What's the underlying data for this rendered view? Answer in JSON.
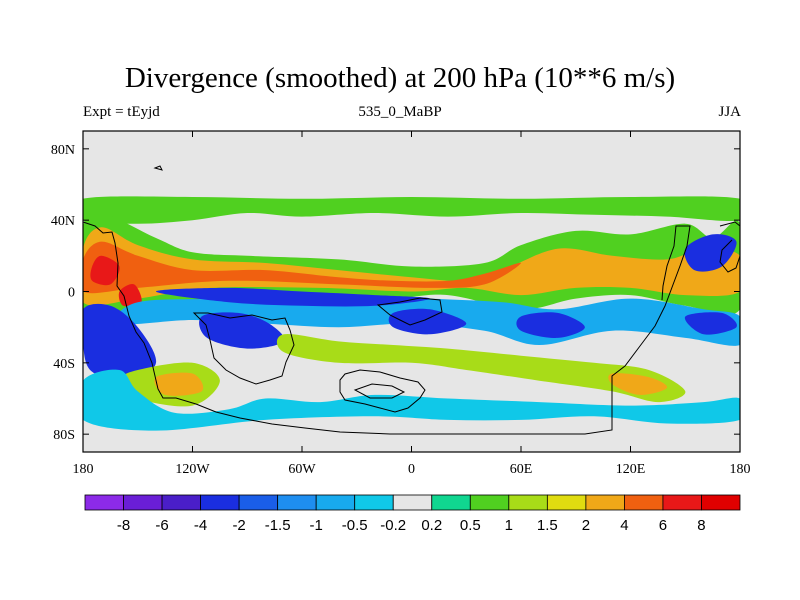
{
  "chart_data": {
    "type": "heatmap",
    "title": "Divergence (smoothed) at 200 hPa (10**6 m/s)",
    "subtitle_left": "Expt = tEyjd",
    "subtitle_center": "535_0_MaBP",
    "subtitle_right": "JJA",
    "xlim": [
      -180,
      180
    ],
    "ylim": [
      -90,
      90
    ],
    "x_ticks": [
      {
        "value": -180,
        "label": "180"
      },
      {
        "value": -120,
        "label": "120W"
      },
      {
        "value": -60,
        "label": "60W"
      },
      {
        "value": 0,
        "label": "0"
      },
      {
        "value": 60,
        "label": "60E"
      },
      {
        "value": 120,
        "label": "120E"
      },
      {
        "value": 180,
        "label": "180"
      }
    ],
    "y_ticks": [
      {
        "value": 80,
        "label": "80N"
      },
      {
        "value": 40,
        "label": "40N"
      },
      {
        "value": 0,
        "label": "0"
      },
      {
        "value": -40,
        "label": "40S"
      },
      {
        "value": -80,
        "label": "80S"
      }
    ],
    "colorbar": {
      "labels": [
        "-8",
        "-6",
        "-4",
        "-2",
        "-1.5",
        "-1",
        "-0.5",
        "-0.2",
        "0.2",
        "0.5",
        "1",
        "1.5",
        "2",
        "4",
        "6",
        "8"
      ],
      "colors": [
        "#8c2ae8",
        "#6a1ed6",
        "#4a1ec8",
        "#1a2ee0",
        "#1a5ee8",
        "#1e8ef0",
        "#18aaee",
        "#10c8e8",
        "#e6e6e6",
        "#10d690",
        "#50d020",
        "#a8dc18",
        "#e0dc10",
        "#f0a818",
        "#f06010",
        "#e81818",
        "#e00000"
      ]
    },
    "bands": [
      {
        "level": 0.5,
        "pts": [
          [
            -180,
            52
          ],
          [
            -180,
            40
          ],
          [
            -150,
            38
          ],
          [
            -120,
            40
          ],
          [
            -90,
            44
          ],
          [
            -60,
            42
          ],
          [
            -20,
            44
          ],
          [
            20,
            42
          ],
          [
            60,
            44
          ],
          [
            100,
            43
          ],
          [
            140,
            42
          ],
          [
            180,
            40
          ],
          [
            180,
            52
          ],
          [
            120,
            53
          ],
          [
            60,
            52
          ],
          [
            0,
            53
          ],
          [
            -60,
            52
          ],
          [
            -120,
            53
          ]
        ]
      },
      {
        "level": 0.5,
        "pts": [
          [
            -180,
            36
          ],
          [
            -170,
            44
          ],
          [
            -140,
            30
          ],
          [
            -120,
            22
          ],
          [
            -90,
            20
          ],
          [
            -40,
            18
          ],
          [
            0,
            14
          ],
          [
            40,
            16
          ],
          [
            60,
            26
          ],
          [
            90,
            34
          ],
          [
            120,
            32
          ],
          [
            150,
            38
          ],
          [
            165,
            30
          ],
          [
            180,
            38
          ],
          [
            180,
            -10
          ],
          [
            150,
            -8
          ],
          [
            120,
            -2
          ],
          [
            90,
            -4
          ],
          [
            60,
            -10
          ],
          [
            20,
            -2
          ],
          [
            -10,
            -4
          ],
          [
            -60,
            -6
          ],
          [
            -110,
            -4
          ],
          [
            -150,
            -10
          ],
          [
            -180,
            -14
          ]
        ]
      },
      {
        "level": 2,
        "pts": [
          [
            -180,
            24
          ],
          [
            -170,
            36
          ],
          [
            -150,
            26
          ],
          [
            -120,
            18
          ],
          [
            -80,
            16
          ],
          [
            -40,
            12
          ],
          [
            0,
            8
          ],
          [
            30,
            6
          ],
          [
            50,
            12
          ],
          [
            80,
            24
          ],
          [
            110,
            20
          ],
          [
            140,
            18
          ],
          [
            160,
            24
          ],
          [
            180,
            20
          ],
          [
            180,
            0
          ],
          [
            150,
            -2
          ],
          [
            120,
            2
          ],
          [
            90,
            2
          ],
          [
            60,
            -2
          ],
          [
            30,
            2
          ],
          [
            0,
            0
          ],
          [
            -50,
            2
          ],
          [
            -110,
            2
          ],
          [
            -150,
            -4
          ],
          [
            -180,
            -6
          ]
        ]
      },
      {
        "level": 4,
        "pts": [
          [
            -180,
            18
          ],
          [
            -170,
            28
          ],
          [
            -150,
            20
          ],
          [
            -120,
            12
          ],
          [
            -80,
            12
          ],
          [
            -40,
            8
          ],
          [
            -10,
            6
          ],
          [
            20,
            6
          ],
          [
            40,
            10
          ],
          [
            60,
            16
          ],
          [
            40,
            4
          ],
          [
            10,
            2
          ],
          [
            -40,
            4
          ],
          [
            -100,
            6
          ],
          [
            -150,
            2
          ],
          [
            -180,
            0
          ]
        ]
      },
      {
        "level": 6,
        "pts": [
          [
            -175,
            14
          ],
          [
            -170,
            20
          ],
          [
            -160,
            14
          ],
          [
            -165,
            4
          ],
          [
            -175,
            6
          ]
        ]
      },
      {
        "level": 6,
        "pts": [
          [
            -160,
            0
          ],
          [
            -152,
            4
          ],
          [
            -148,
            -6
          ],
          [
            -158,
            -8
          ]
        ]
      },
      {
        "level": -1,
        "pts": [
          [
            -150,
            -6
          ],
          [
            -100,
            -4
          ],
          [
            -40,
            -2
          ],
          [
            10,
            -4
          ],
          [
            50,
            -6
          ],
          [
            80,
            -10
          ],
          [
            120,
            -4
          ],
          [
            160,
            -10
          ],
          [
            180,
            -14
          ],
          [
            180,
            -30
          ],
          [
            150,
            -26
          ],
          [
            110,
            -22
          ],
          [
            70,
            -30
          ],
          [
            40,
            -22
          ],
          [
            0,
            -18
          ],
          [
            -40,
            -20
          ],
          [
            -80,
            -18
          ],
          [
            -120,
            -16
          ],
          [
            -160,
            -18
          ]
        ]
      },
      {
        "level": -4,
        "pts": [
          [
            -140,
            0
          ],
          [
            -100,
            2
          ],
          [
            -60,
            0
          ],
          [
            -20,
            -2
          ],
          [
            10,
            -4
          ],
          [
            -20,
            -8
          ],
          [
            -60,
            -8
          ],
          [
            -100,
            -6
          ]
        ]
      },
      {
        "level": -4,
        "pts": [
          [
            -180,
            -10
          ],
          [
            -165,
            -8
          ],
          [
            -150,
            -20
          ],
          [
            -140,
            -40
          ],
          [
            -155,
            -50
          ],
          [
            -175,
            -45
          ],
          [
            -180,
            -30
          ]
        ]
      },
      {
        "level": -4,
        "pts": [
          [
            -115,
            -14
          ],
          [
            -95,
            -12
          ],
          [
            -78,
            -18
          ],
          [
            -70,
            -28
          ],
          [
            -90,
            -32
          ],
          [
            -112,
            -26
          ]
        ]
      },
      {
        "level": -4,
        "pts": [
          [
            -10,
            -12
          ],
          [
            10,
            -10
          ],
          [
            30,
            -18
          ],
          [
            10,
            -24
          ],
          [
            -10,
            -20
          ]
        ]
      },
      {
        "level": -4,
        "pts": [
          [
            60,
            -14
          ],
          [
            80,
            -12
          ],
          [
            95,
            -20
          ],
          [
            80,
            -26
          ],
          [
            60,
            -22
          ]
        ]
      },
      {
        "level": -4,
        "pts": [
          [
            150,
            -14
          ],
          [
            170,
            -12
          ],
          [
            178,
            -20
          ],
          [
            160,
            -24
          ]
        ]
      },
      {
        "level": -4,
        "pts": [
          [
            150,
            24
          ],
          [
            165,
            32
          ],
          [
            178,
            28
          ],
          [
            170,
            14
          ],
          [
            155,
            12
          ]
        ]
      },
      {
        "level": 1,
        "pts": [
          [
            -150,
            -44
          ],
          [
            -120,
            -40
          ],
          [
            -105,
            -50
          ],
          [
            -120,
            -64
          ],
          [
            -150,
            -60
          ],
          [
            -160,
            -50
          ]
        ]
      },
      {
        "level": 2,
        "pts": [
          [
            -140,
            -48
          ],
          [
            -120,
            -46
          ],
          [
            -115,
            -56
          ],
          [
            -135,
            -58
          ]
        ]
      },
      {
        "level": 1,
        "pts": [
          [
            -70,
            -24
          ],
          [
            -40,
            -28
          ],
          [
            -10,
            -30
          ],
          [
            20,
            -32
          ],
          [
            60,
            -36
          ],
          [
            100,
            -40
          ],
          [
            130,
            -44
          ],
          [
            150,
            -56
          ],
          [
            135,
            -62
          ],
          [
            110,
            -56
          ],
          [
            70,
            -50
          ],
          [
            30,
            -44
          ],
          [
            0,
            -40
          ],
          [
            -40,
            -40
          ],
          [
            -70,
            -34
          ]
        ]
      },
      {
        "level": 2,
        "pts": [
          [
            110,
            -46
          ],
          [
            130,
            -48
          ],
          [
            140,
            -54
          ],
          [
            125,
            -58
          ],
          [
            110,
            -52
          ]
        ]
      },
      {
        "level": -0.5,
        "pts": [
          [
            -180,
            -50
          ],
          [
            -160,
            -44
          ],
          [
            -150,
            -56
          ],
          [
            -130,
            -68
          ],
          [
            -100,
            -66
          ],
          [
            -80,
            -60
          ],
          [
            -50,
            -62
          ],
          [
            -20,
            -58
          ],
          [
            20,
            -60
          ],
          [
            70,
            -62
          ],
          [
            120,
            -64
          ],
          [
            160,
            -62
          ],
          [
            180,
            -60
          ],
          [
            180,
            -72
          ],
          [
            140,
            -74
          ],
          [
            100,
            -70
          ],
          [
            60,
            -72
          ],
          [
            20,
            -72
          ],
          [
            -20,
            -70
          ],
          [
            -80,
            -72
          ],
          [
            -140,
            -78
          ],
          [
            -180,
            -72
          ]
        ]
      }
    ]
  }
}
